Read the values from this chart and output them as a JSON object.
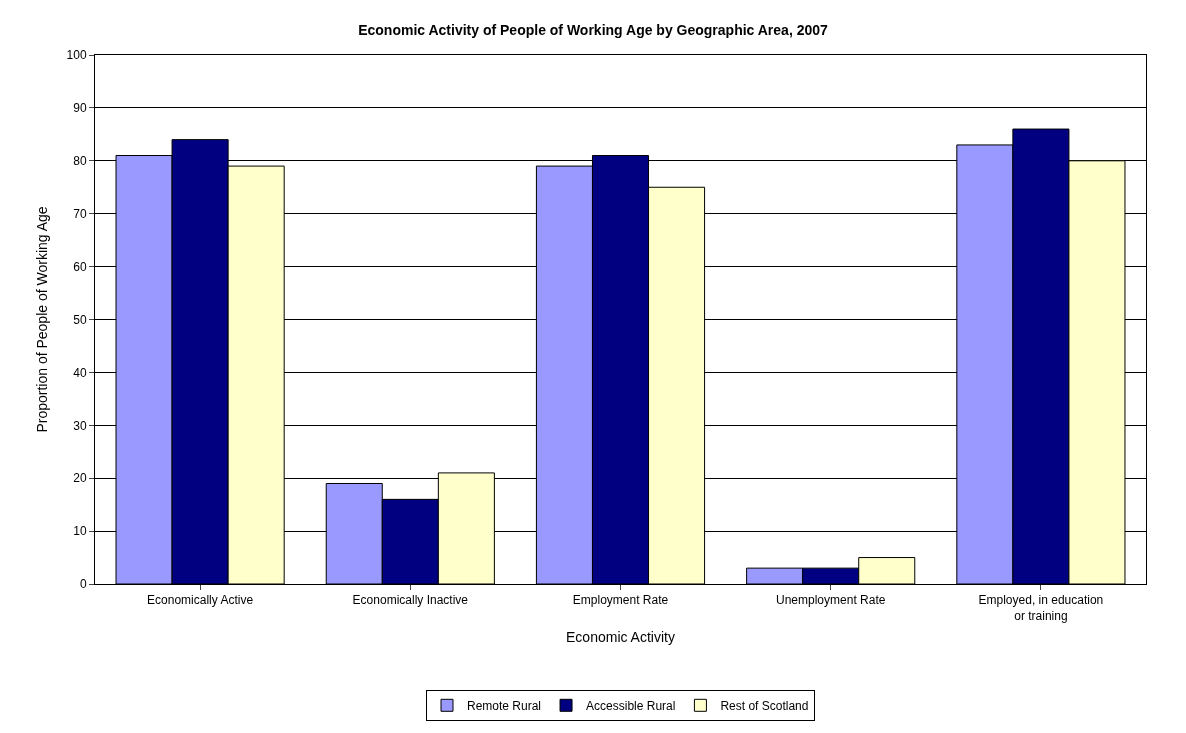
{
  "chart_data": {
    "type": "bar",
    "title": "Economic Activity of People of Working Age by Geographic Area, 2007",
    "xlabel": "Economic Activity",
    "ylabel": "Proportion of People of Working Age",
    "categories": [
      "Economically Active",
      "Economically Inactive",
      "Employment Rate",
      "Unemployment Rate",
      "Employed, in education or training"
    ],
    "series": [
      {
        "name": "Remote Rural",
        "color": "#9999ff",
        "values": [
          81,
          19,
          79,
          3,
          83
        ]
      },
      {
        "name": "Accessible Rural",
        "color": "#000080",
        "values": [
          84,
          16,
          81,
          3,
          86
        ]
      },
      {
        "name": "Rest of Scotland",
        "color": "#ffffcc",
        "values": [
          79,
          21,
          75,
          5,
          80
        ]
      }
    ],
    "ylim": [
      0,
      100
    ],
    "yticks": [
      0,
      10,
      20,
      30,
      40,
      50,
      60,
      70,
      80,
      90,
      100
    ],
    "grid": "y",
    "legend": "bottom"
  }
}
